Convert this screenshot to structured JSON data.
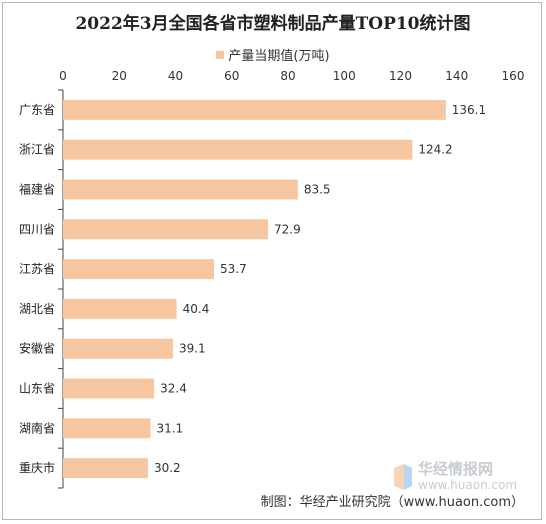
{
  "title": "2022年3月全国各省市塑料制品产量TOP10统计图",
  "legend_label": "产量当期值(万吨)",
  "credit": "制图：华经产业研究院（www.huaon.com）",
  "watermark": {
    "name": "华经情报网",
    "url": "www.huaon.com"
  },
  "colors": {
    "bar": "#f6c6a0",
    "axis": "#444444"
  },
  "chart_data": {
    "type": "bar",
    "orientation": "horizontal",
    "categories": [
      "广东省",
      "浙江省",
      "福建省",
      "四川省",
      "江苏省",
      "湖北省",
      "安徽省",
      "山东省",
      "湖南省",
      "重庆市"
    ],
    "series": [
      {
        "name": "产量当期值(万吨)",
        "values": [
          136.1,
          124.2,
          83.5,
          72.9,
          53.7,
          40.4,
          39.1,
          32.4,
          31.1,
          30.2
        ]
      }
    ],
    "xlim": [
      0,
      160
    ],
    "xticks": [
      0,
      20,
      40,
      60,
      80,
      100,
      120,
      140,
      160
    ],
    "axis_position": "top",
    "legend_position": "top",
    "grid": false
  }
}
